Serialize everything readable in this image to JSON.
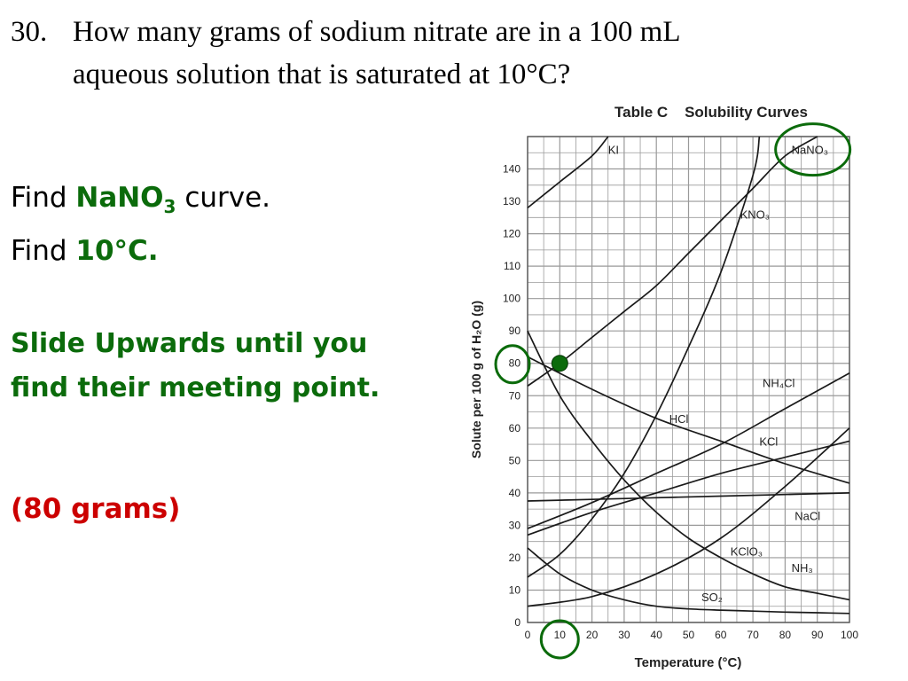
{
  "question": {
    "number": "30.",
    "line1": "How many grams of sodium nitrate are in a 100 mL",
    "line2": "aqueous solution that is saturated at 10°C?"
  },
  "instructions": {
    "find1_prefix": "Find ",
    "find1_formula": "NaNO",
    "find1_subscript": "3",
    "find1_suffix": " curve.",
    "find2_prefix": "Find ",
    "find2_value": "10°C.",
    "slide_line1": "Slide Upwards until you",
    "slide_line2": "find their meeting point.",
    "answer": "(80 grams)"
  },
  "colors": {
    "highlight_green": "#0b6b0b",
    "answer_red": "#cc0000",
    "curve": "#1a1a1a",
    "grid": "#9a9a9a"
  },
  "chart_data": {
    "type": "line",
    "title": "Table C    Solubility Curves",
    "xlabel": "Temperature (°C)",
    "ylabel": "Solute per 100 g of H₂O (g)",
    "xlim": [
      0,
      100
    ],
    "ylim": [
      0,
      150
    ],
    "grid": true,
    "x_ticks": [
      0,
      10,
      20,
      30,
      40,
      50,
      60,
      70,
      80,
      90,
      100
    ],
    "y_ticks": [
      0,
      10,
      20,
      30,
      40,
      50,
      60,
      70,
      80,
      90,
      100,
      110,
      120,
      130,
      140
    ],
    "series": [
      {
        "name": "KI",
        "label_at": [
          25,
          146
        ],
        "x": [
          0,
          10,
          20,
          25
        ],
        "y": [
          128,
          136,
          144,
          150
        ]
      },
      {
        "name": "NaNO₃",
        "label_at": [
          82,
          146
        ],
        "x": [
          0,
          10,
          20,
          30,
          40,
          50,
          60,
          70,
          80,
          90
        ],
        "y": [
          73,
          80,
          88,
          96,
          104,
          114,
          124,
          134,
          144,
          150
        ]
      },
      {
        "name": "KNO₃",
        "label_at": [
          66,
          126
        ],
        "x": [
          0,
          10,
          20,
          30,
          40,
          50,
          60,
          70,
          72
        ],
        "y": [
          14,
          21,
          32,
          46,
          64,
          85,
          108,
          138,
          150
        ]
      },
      {
        "name": "NH₄Cl",
        "label_at": [
          73,
          74
        ],
        "x": [
          0,
          20,
          40,
          60,
          80,
          100
        ],
        "y": [
          29,
          37,
          46,
          55,
          66,
          77
        ]
      },
      {
        "name": "HCl",
        "label_at": [
          44,
          63
        ],
        "x": [
          0,
          20,
          40,
          60,
          80,
          100
        ],
        "y": [
          82,
          72,
          63,
          56,
          49,
          43
        ]
      },
      {
        "name": "KCl",
        "label_at": [
          72,
          56
        ],
        "x": [
          0,
          20,
          40,
          60,
          80,
          100
        ],
        "y": [
          27,
          34,
          40,
          46,
          51,
          56
        ]
      },
      {
        "name": "NaCl",
        "label_at": [
          83,
          33
        ],
        "x": [
          0,
          20,
          40,
          60,
          80,
          100
        ],
        "y": [
          37.5,
          38,
          38.5,
          39,
          39.5,
          40
        ]
      },
      {
        "name": "KClO₃",
        "label_at": [
          63,
          22
        ],
        "x": [
          0,
          20,
          40,
          60,
          80,
          100
        ],
        "y": [
          5,
          8,
          15,
          26,
          42,
          60
        ]
      },
      {
        "name": "NH₃",
        "label_at": [
          82,
          17
        ],
        "x": [
          0,
          10,
          20,
          30,
          40,
          50,
          60,
          70,
          80,
          90,
          100
        ],
        "y": [
          90,
          70,
          56,
          44,
          34,
          26,
          20,
          15,
          11,
          9,
          7
        ]
      },
      {
        "name": "SO₂",
        "label_at": [
          54,
          8
        ],
        "x": [
          0,
          10,
          20,
          30,
          40,
          50,
          60,
          70,
          80,
          90,
          100
        ],
        "y": [
          23,
          15,
          10,
          7,
          5,
          4.2,
          3.8,
          3.5,
          3.2,
          3,
          2.8
        ]
      }
    ],
    "highlight": {
      "series": "NaNO₃",
      "x": 10,
      "y": 80
    }
  }
}
